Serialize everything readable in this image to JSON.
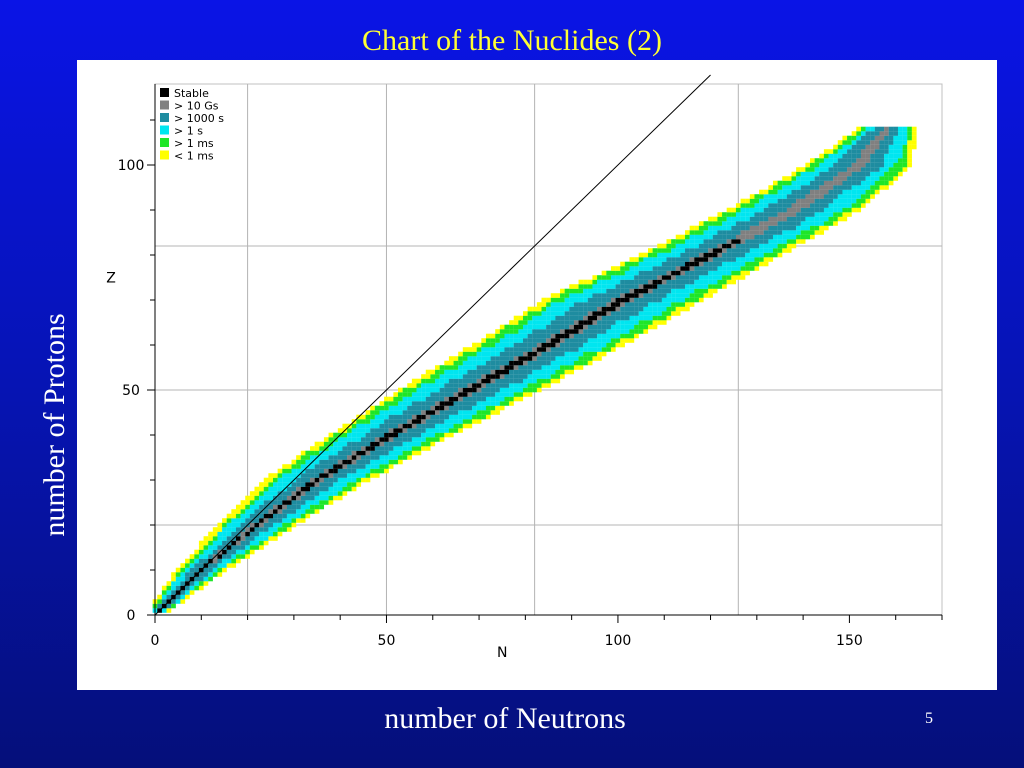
{
  "slide": {
    "title": "Chart of the Nuclides (2)",
    "x_caption": "number of Neutrons",
    "y_caption": "number of Protons",
    "page_number": "5"
  },
  "colors": {
    "background_top": "#0a14e6",
    "background_bottom": "#050f7a",
    "title": "#ffff33",
    "stable": "#000000",
    "gt_10_gs": "#808080",
    "gt_1000_s": "#1e8ca0",
    "gt_1_s": "#00e6f0",
    "gt_1_ms": "#1ee628",
    "lt_1_ms": "#ffff00"
  },
  "chart_data": {
    "type": "heatmap",
    "xlabel": "N",
    "ylabel": "Z",
    "xlim": [
      0,
      170
    ],
    "ylim": [
      0,
      118
    ],
    "x_ticks": [
      0,
      50,
      100,
      150
    ],
    "y_ticks": [
      0,
      50,
      100
    ],
    "x_gridlines": [
      20,
      50,
      82,
      126
    ],
    "y_gridlines": [
      20,
      50,
      82
    ],
    "grid": true,
    "legend_position": "top-left",
    "legend": [
      {
        "label": "Stable",
        "color": "#000000"
      },
      {
        "label": "> 10 Gs",
        "color": "#808080"
      },
      {
        "label": "> 1000 s",
        "color": "#1e8ca0"
      },
      {
        "label": "> 1 s",
        "color": "#00e6f0"
      },
      {
        "label": "> 1 ms",
        "color": "#1ee628"
      },
      {
        "label": "< 1 ms",
        "color": "#ffff00"
      }
    ],
    "reference_line": {
      "label": "N = Z",
      "from": [
        0,
        0
      ],
      "to": [
        120,
        120
      ]
    },
    "band_profile": [
      {
        "z": 1,
        "n_center": 1,
        "half_width": 2
      },
      {
        "z": 10,
        "n_center": 10,
        "half_width": 5
      },
      {
        "z": 20,
        "n_center": 22,
        "half_width": 8
      },
      {
        "z": 30,
        "n_center": 35,
        "half_width": 11
      },
      {
        "z": 40,
        "n_center": 51,
        "half_width": 13
      },
      {
        "z": 50,
        "n_center": 68,
        "half_width": 15
      },
      {
        "z": 60,
        "n_center": 85,
        "half_width": 16
      },
      {
        "z": 70,
        "n_center": 101,
        "half_width": 17
      },
      {
        "z": 80,
        "n_center": 120,
        "half_width": 15
      },
      {
        "z": 90,
        "n_center": 138,
        "half_width": 14
      },
      {
        "z": 100,
        "n_center": 152,
        "half_width": 11
      },
      {
        "z": 108,
        "n_center": 158,
        "half_width": 6
      }
    ]
  }
}
